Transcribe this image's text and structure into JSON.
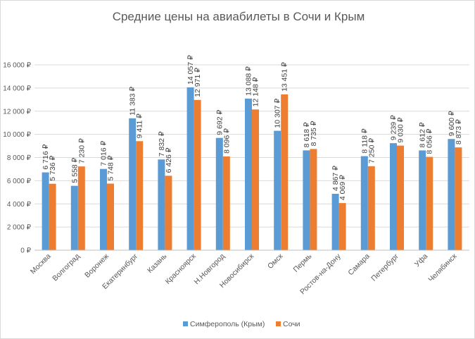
{
  "chart_data": {
    "type": "bar",
    "title": "Средние цены на авиабилеты в Сочи и Крым",
    "categories": [
      "Москва",
      "Волгоград",
      "Воронеж",
      "Екатеринбург",
      "Казань",
      "Красноярск",
      "Н.Новгород",
      "Новосибирск",
      "Омск",
      "Пермь",
      "Ростов-на-Дону",
      "Самара",
      "Петербург",
      "Уфа",
      "Челябинск"
    ],
    "series": [
      {
        "name": "Симферополь (Крым)",
        "color": "#5b9bd5",
        "values": [
          6716,
          5558,
          7016,
          11383,
          7832,
          14057,
          9692,
          13088,
          10307,
          8618,
          4867,
          8118,
          9239,
          8612,
          9600
        ],
        "labels": [
          "6 716 ₽",
          "5 558 ₽",
          "7 016 ₽",
          "11 383 ₽",
          "7 832 ₽",
          "14 057 ₽",
          "9 692 ₽",
          "13 088 ₽",
          "10 307 ₽",
          "8 618 ₽",
          "4 867 ₽",
          "8 118 ₽",
          "9 239 ₽",
          "8 612 ₽",
          "9 600 ₽"
        ]
      },
      {
        "name": "Сочи",
        "color": "#ed7d31",
        "values": [
          5736,
          7230,
          5748,
          9411,
          6426,
          12971,
          8096,
          12148,
          13451,
          8735,
          4069,
          7250,
          9030,
          8056,
          8873
        ],
        "labels": [
          "5 736 ₽",
          "7 230 ₽",
          "5 748 ₽",
          "9 411 ₽",
          "6 426 ₽",
          "12 971 ₽",
          "8 096 ₽",
          "12 148 ₽",
          "13 451 ₽",
          "8 735 ₽",
          "4 069 ₽",
          "7 250 ₽",
          "9 030 ₽",
          "8 056 ₽",
          "8 873 ₽"
        ]
      }
    ],
    "ylim": [
      0,
      16000
    ],
    "yticks": [
      0,
      2000,
      4000,
      6000,
      8000,
      10000,
      12000,
      14000,
      16000
    ],
    "ytick_labels": [
      "0 ₽",
      "2 000 ₽",
      "4 000 ₽",
      "6 000 ₽",
      "8 000 ₽",
      "10 000 ₽",
      "12 000 ₽",
      "14 000 ₽",
      "16 000 ₽"
    ],
    "grid": true,
    "legend": "bottom",
    "gridline_color": "#d9d9d9",
    "axis_color": "#bfbfbf"
  }
}
